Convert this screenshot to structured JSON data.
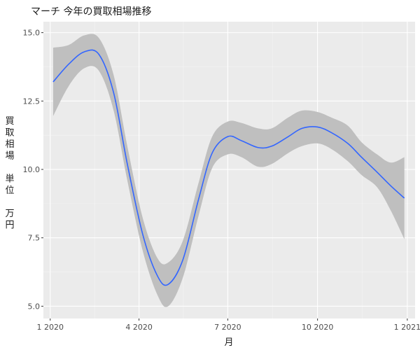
{
  "chart_data": {
    "type": "line",
    "title": "マーチ 今年の買取相場推移",
    "xlabel": "月",
    "ylabel_chars": [
      "買",
      "取",
      "相",
      "場",
      "",
      "単",
      "位",
      "",
      "万",
      "円"
    ],
    "x_ticks": [
      {
        "date": "2020-01-01",
        "label": "1 2020"
      },
      {
        "date": "2020-04-01",
        "label": "4 2020"
      },
      {
        "date": "2020-07-01",
        "label": "7 2020"
      },
      {
        "date": "2020-10-01",
        "label": "10 2020"
      },
      {
        "date": "2021-01-01",
        "label": "1 2021"
      }
    ],
    "x_range": [
      "2019-12-25",
      "2021-01-09"
    ],
    "y_ticks": [
      5.0,
      7.5,
      10.0,
      12.5,
      15.0
    ],
    "y_tick_labels": [
      "5.0",
      "7.5",
      "10.0",
      "12.5",
      "15.0"
    ],
    "ylim": [
      4.55,
      15.4
    ],
    "grid": true,
    "series": [
      {
        "smooth": true,
        "color": "#3366ff",
        "ribbon_color": "#bfbfbf",
        "points": [
          {
            "date": "2020-01-04",
            "y": 13.2,
            "lo": 11.95,
            "hi": 14.45
          },
          {
            "date": "2020-01-20",
            "y": 13.85,
            "lo": 13.05,
            "hi": 14.55
          },
          {
            "date": "2020-02-05",
            "y": 14.3,
            "lo": 13.7,
            "hi": 14.9
          },
          {
            "date": "2020-02-20",
            "y": 14.2,
            "lo": 13.6,
            "hi": 14.8
          },
          {
            "date": "2020-03-06",
            "y": 12.8,
            "lo": 12.15,
            "hi": 13.45
          },
          {
            "date": "2020-03-20",
            "y": 10.2,
            "lo": 9.6,
            "hi": 10.85
          },
          {
            "date": "2020-04-05",
            "y": 7.6,
            "lo": 7.0,
            "hi": 8.2
          },
          {
            "date": "2020-04-20",
            "y": 6.1,
            "lo": 5.4,
            "hi": 6.75
          },
          {
            "date": "2020-05-01",
            "y": 5.8,
            "lo": 5.0,
            "hi": 6.6
          },
          {
            "date": "2020-05-16",
            "y": 6.7,
            "lo": 6.05,
            "hi": 7.4
          },
          {
            "date": "2020-06-01",
            "y": 8.9,
            "lo": 8.3,
            "hi": 9.5
          },
          {
            "date": "2020-06-15",
            "y": 10.6,
            "lo": 10.05,
            "hi": 11.2
          },
          {
            "date": "2020-07-01",
            "y": 11.2,
            "lo": 10.55,
            "hi": 11.75
          },
          {
            "date": "2020-07-15",
            "y": 11.05,
            "lo": 10.45,
            "hi": 11.7
          },
          {
            "date": "2020-08-01",
            "y": 10.8,
            "lo": 10.1,
            "hi": 11.5
          },
          {
            "date": "2020-08-15",
            "y": 10.85,
            "lo": 10.2,
            "hi": 11.5
          },
          {
            "date": "2020-09-01",
            "y": 11.2,
            "lo": 10.6,
            "hi": 11.9
          },
          {
            "date": "2020-09-15",
            "y": 11.5,
            "lo": 10.85,
            "hi": 12.15
          },
          {
            "date": "2020-10-01",
            "y": 11.55,
            "lo": 10.95,
            "hi": 12.1
          },
          {
            "date": "2020-10-15",
            "y": 11.35,
            "lo": 10.75,
            "hi": 11.9
          },
          {
            "date": "2020-11-01",
            "y": 10.95,
            "lo": 10.3,
            "hi": 11.6
          },
          {
            "date": "2020-11-15",
            "y": 10.45,
            "lo": 9.8,
            "hi": 11.0
          },
          {
            "date": "2020-12-01",
            "y": 9.9,
            "lo": 9.35,
            "hi": 10.55
          },
          {
            "date": "2020-12-15",
            "y": 9.4,
            "lo": 8.5,
            "hi": 10.25
          },
          {
            "date": "2020-12-29",
            "y": 8.95,
            "lo": 7.45,
            "hi": 10.45
          }
        ]
      }
    ]
  }
}
